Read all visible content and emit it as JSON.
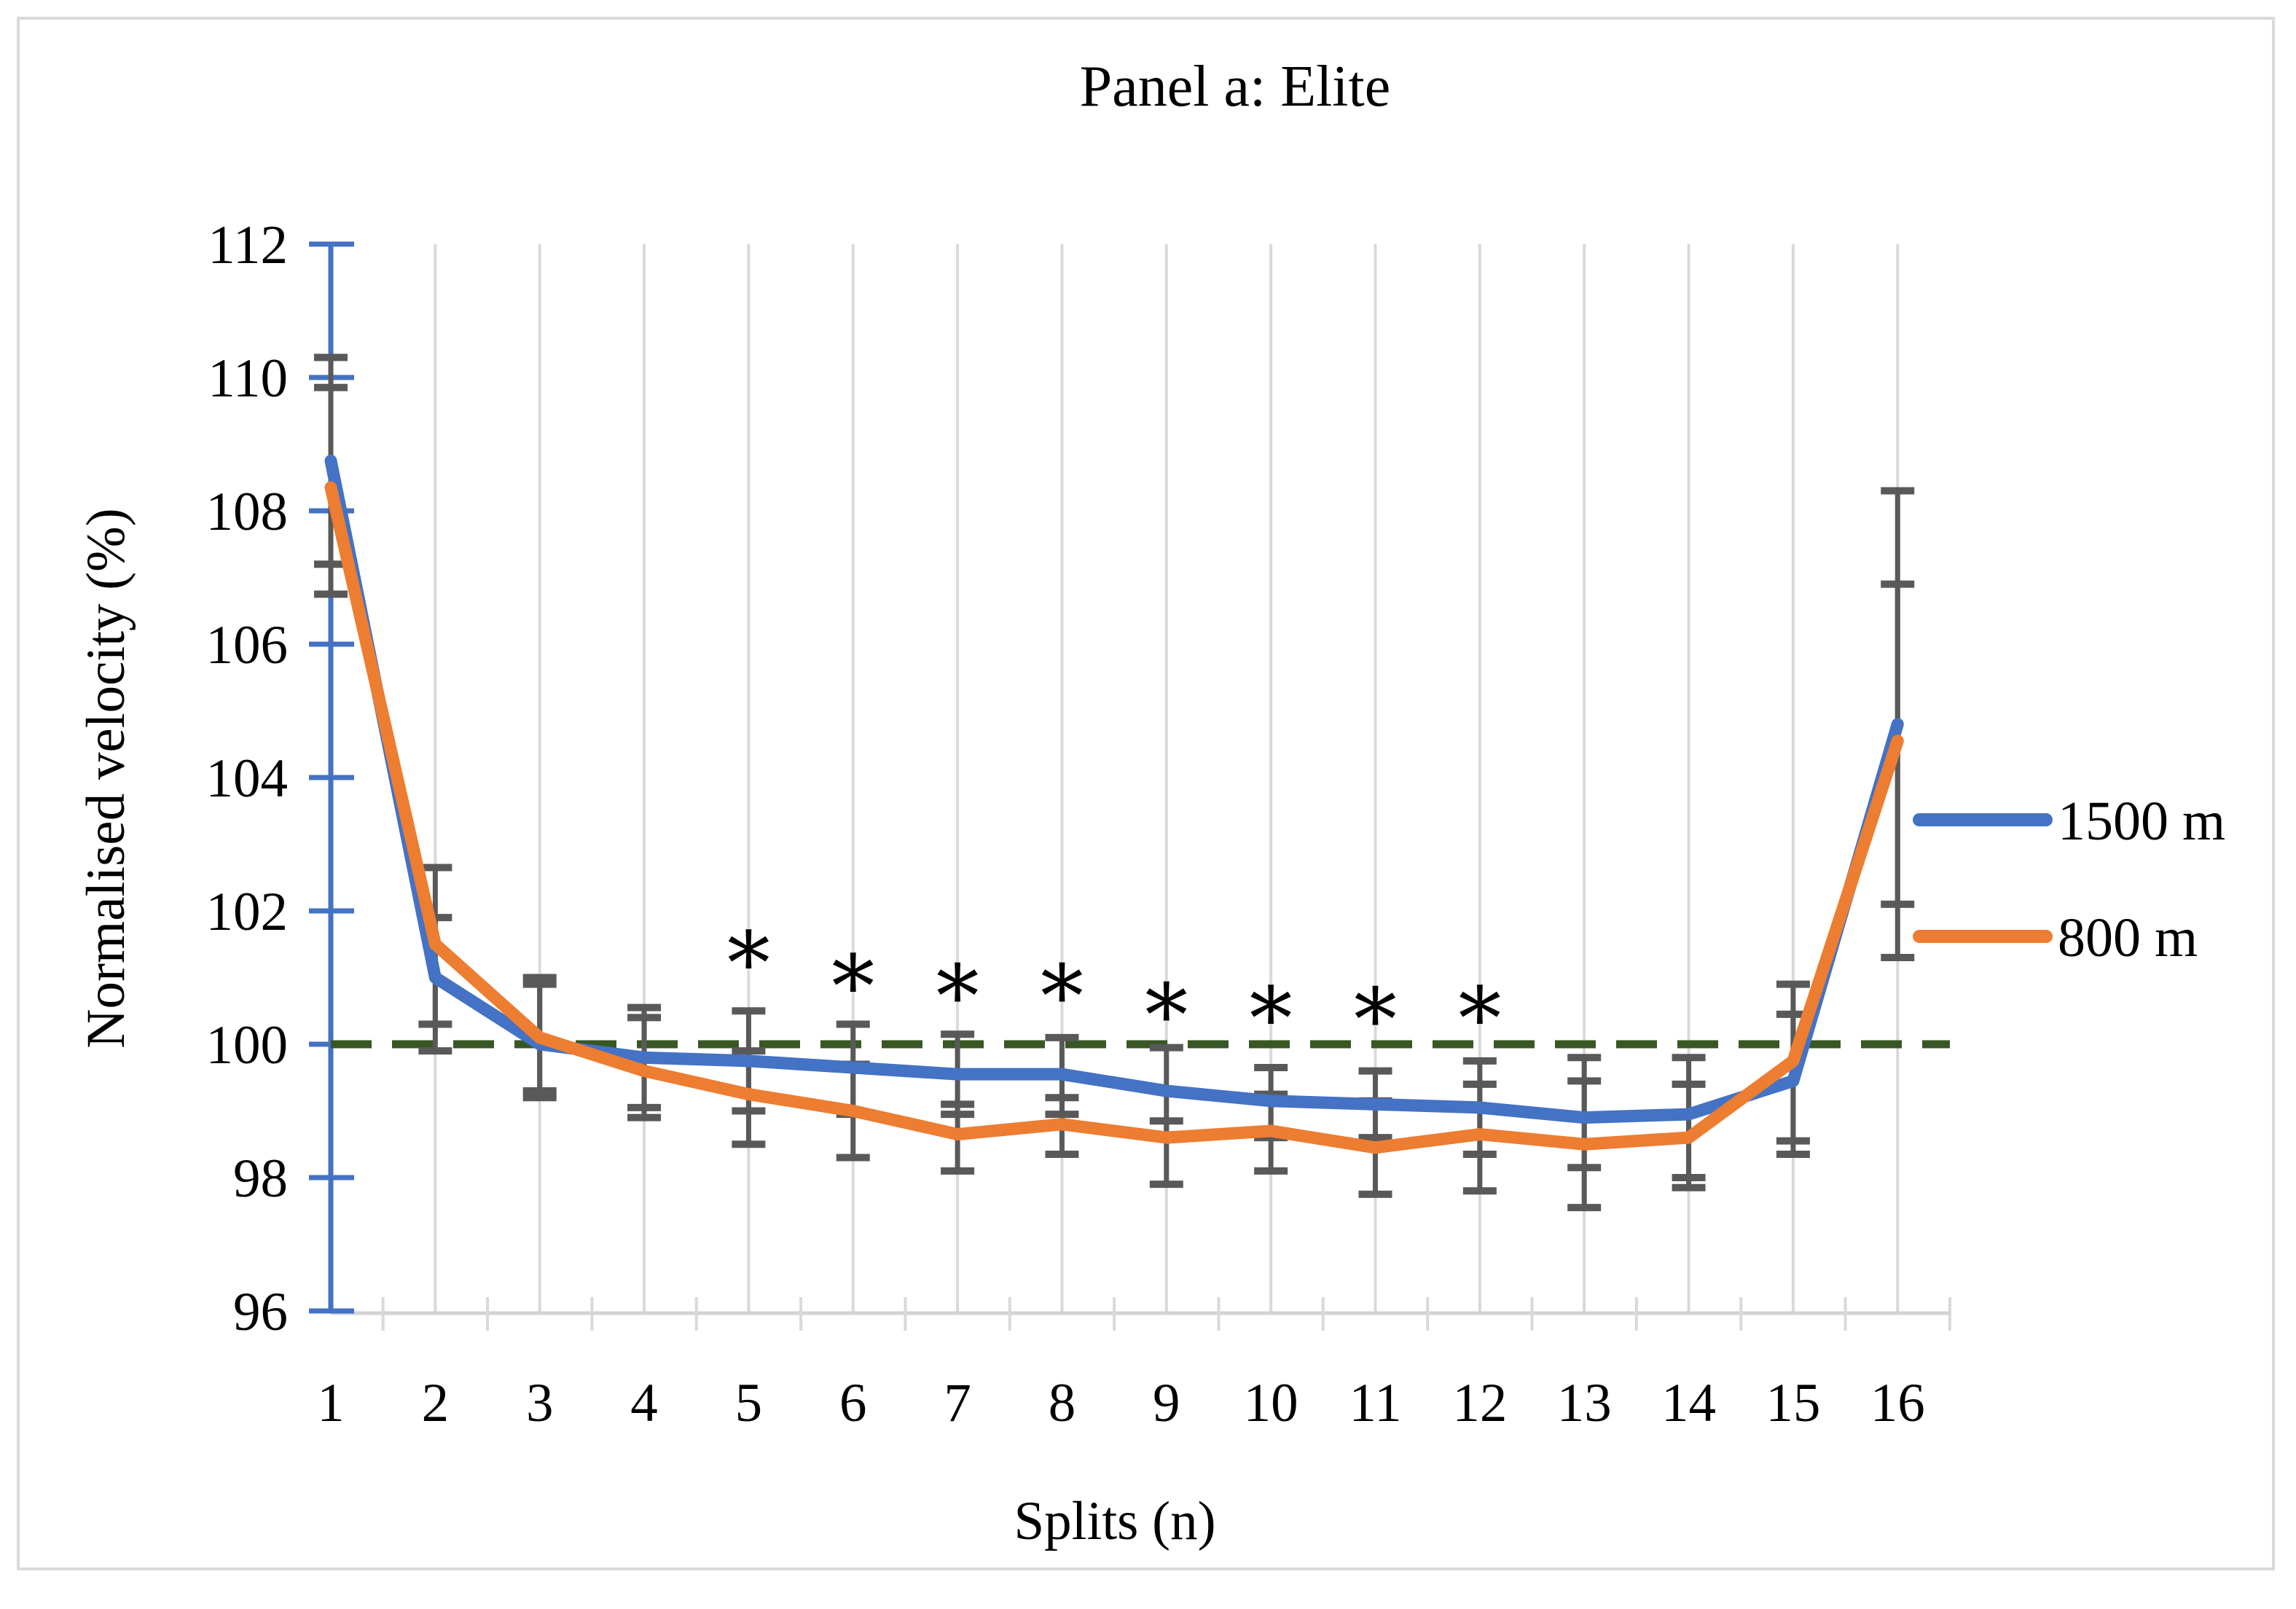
{
  "title": "Panel a: Elite",
  "axes": {
    "y_label": "Normalised velocity (%)",
    "x_label": "Splits (n)",
    "y_ticks": [
      96,
      98,
      100,
      102,
      104,
      106,
      108,
      110,
      112
    ],
    "x_ticks": [
      1,
      2,
      3,
      4,
      5,
      6,
      7,
      8,
      9,
      10,
      11,
      12,
      13,
      14,
      15,
      16
    ]
  },
  "legend": [
    {
      "label": "1500 m",
      "color": "#4472C4"
    },
    {
      "label": "800 m",
      "color": "#ED7D31"
    }
  ],
  "colors": {
    "series_1500m": "#4472C4",
    "series_800m": "#ED7D31",
    "reference_line": "#385723",
    "error_bar": "#595959",
    "gridline": "#D9D9D9",
    "x_axis": "#D3D3D3",
    "y_axis": "#4472C4",
    "border": "#D9D9D9",
    "text": "#000000"
  },
  "chart_data": {
    "type": "line",
    "title": "Panel a: Elite",
    "xlabel": "Splits (n)",
    "ylabel": "Normalised velocity (%)",
    "x": [
      1,
      2,
      3,
      4,
      5,
      6,
      7,
      8,
      9,
      10,
      11,
      12,
      13,
      14,
      15,
      16
    ],
    "ylim": [
      96,
      112
    ],
    "grid": "vertical-only",
    "legend_position": "right",
    "reference_line_y": 100,
    "series": [
      {
        "name": "1500 m",
        "color": "#4472C4",
        "values": [
          108.75,
          101.0,
          100.0,
          99.8,
          99.75,
          99.65,
          99.55,
          99.55,
          99.3,
          99.15,
          99.1,
          99.05,
          98.9,
          98.95,
          99.45,
          104.8
        ],
        "err_lo": [
          107.2,
          99.9,
          99.2,
          99.05,
          99.0,
          98.95,
          98.95,
          98.95,
          98.6,
          98.6,
          98.6,
          98.35,
          98.15,
          98.0,
          98.35,
          101.3
        ],
        "err_hi": [
          110.3,
          101.9,
          100.9,
          100.55,
          100.5,
          100.3,
          100.15,
          100.1,
          99.95,
          99.65,
          99.6,
          99.75,
          99.8,
          99.8,
          100.45,
          108.3
        ]
      },
      {
        "name": "800 m",
        "color": "#ED7D31",
        "values": [
          108.35,
          101.5,
          100.1,
          99.6,
          99.25,
          99.0,
          98.65,
          98.8,
          98.6,
          98.7,
          98.45,
          98.65,
          98.5,
          98.6,
          99.75,
          104.55
        ],
        "err_lo": [
          106.75,
          100.3,
          99.3,
          98.9,
          98.5,
          98.3,
          98.1,
          98.35,
          97.9,
          98.1,
          97.75,
          97.8,
          97.55,
          97.85,
          98.55,
          102.1
        ],
        "err_hi": [
          109.85,
          102.65,
          101.0,
          100.4,
          99.9,
          99.7,
          99.1,
          99.2,
          98.85,
          99.25,
          99.15,
          99.4,
          99.45,
          99.4,
          100.9,
          106.9
        ]
      }
    ],
    "annotations": {
      "significance_marker": "*",
      "significance_splits": [
        5,
        6,
        7,
        8,
        9,
        10,
        11,
        12
      ],
      "significance_y": [
        101.4,
        101.05,
        100.9,
        100.9,
        100.62,
        100.57,
        100.55,
        100.57
      ]
    }
  }
}
